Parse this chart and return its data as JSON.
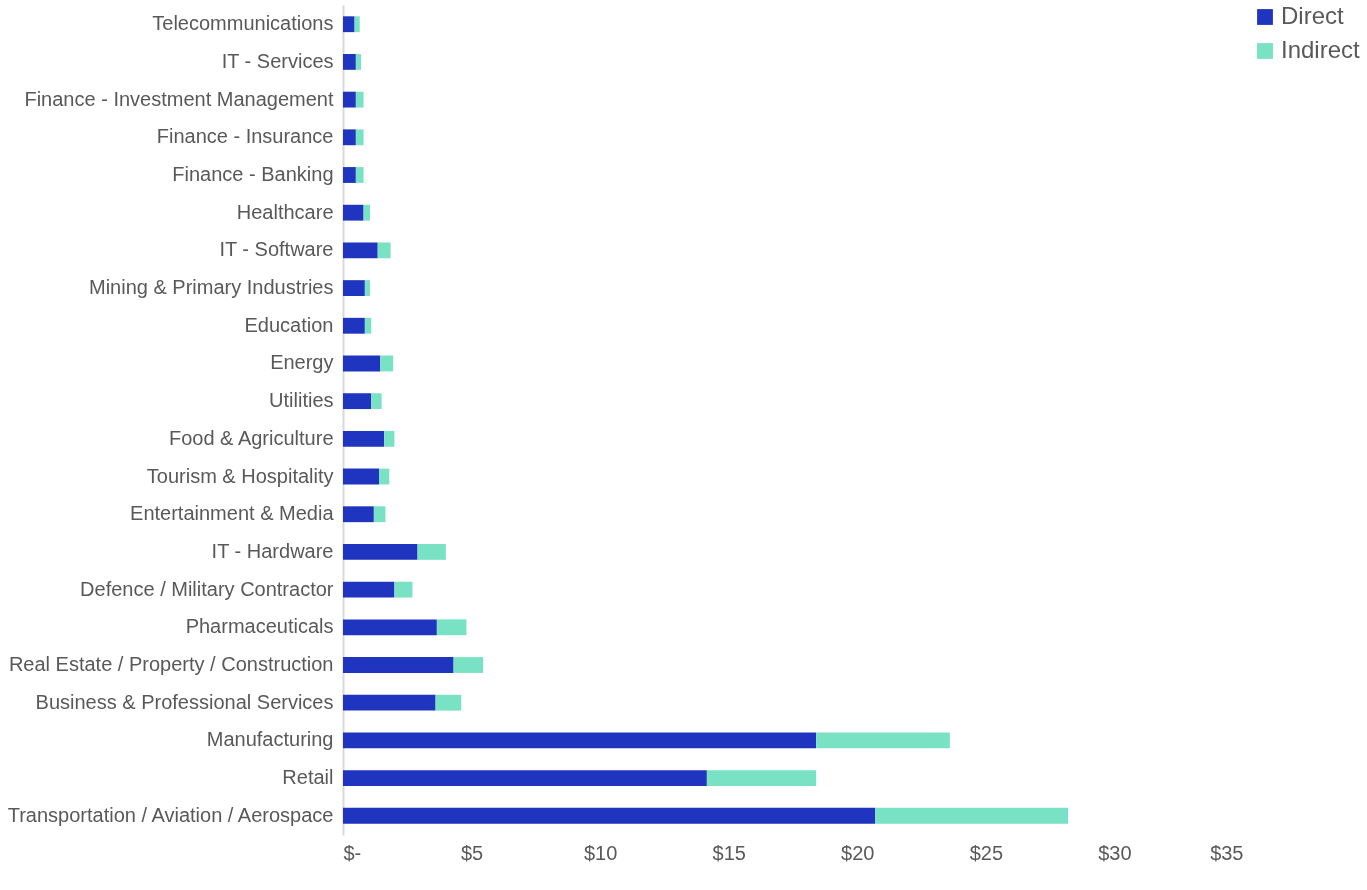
{
  "chart_data": {
    "type": "bar",
    "orientation": "horizontal",
    "stacked": true,
    "categories": [
      "Telecommunications",
      "IT - Services",
      "Finance - Investment Management",
      "Finance - Insurance",
      "Finance - Banking",
      "Healthcare",
      "IT - Software",
      "Mining & Primary Industries",
      "Education",
      "Energy",
      "Utilities",
      "Food & Agriculture",
      "Tourism & Hospitality",
      "Entertainment & Media",
      "IT - Hardware",
      "Defence / Military Contractor",
      "Pharmaceuticals",
      "Real Estate / Property / Construction",
      "Business & Professional Services",
      "Manufacturing",
      "Retail",
      "Transportation / Aviation / Aerospace"
    ],
    "series": [
      {
        "name": "Direct",
        "color": "#1f35bf",
        "values": [
          0.45,
          0.5,
          0.5,
          0.5,
          0.5,
          0.8,
          1.35,
          0.85,
          0.85,
          1.45,
          1.1,
          1.6,
          1.4,
          1.2,
          2.9,
          2.0,
          3.65,
          4.3,
          3.6,
          18.4,
          14.15,
          20.7
        ]
      },
      {
        "name": "Indirect",
        "color": "#79e1c4",
        "values": [
          0.2,
          0.2,
          0.3,
          0.3,
          0.3,
          0.25,
          0.5,
          0.2,
          0.25,
          0.5,
          0.4,
          0.4,
          0.4,
          0.45,
          1.1,
          0.7,
          1.15,
          1.15,
          1.0,
          5.2,
          4.25,
          7.5
        ]
      }
    ],
    "xlim": [
      0,
      35
    ],
    "xticks": [
      {
        "value": 0,
        "label": "$-"
      },
      {
        "value": 5,
        "label": "$5"
      },
      {
        "value": 10,
        "label": "$10"
      },
      {
        "value": 15,
        "label": "$15"
      },
      {
        "value": 20,
        "label": "$20"
      },
      {
        "value": 25,
        "label": "$25"
      },
      {
        "value": 30,
        "label": "$30"
      },
      {
        "value": 35,
        "label": "$35"
      }
    ],
    "grid": false,
    "legend": "top right"
  }
}
